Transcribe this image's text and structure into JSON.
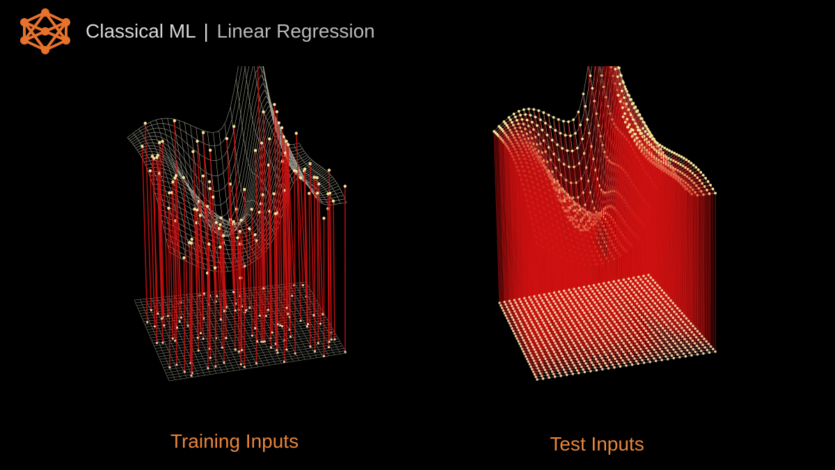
{
  "header": {
    "title_main": "Classical ML",
    "separator": "|",
    "title_sub": "Linear Regression",
    "logo_icon": "neural-network-icon"
  },
  "panels": {
    "training": {
      "caption": "Training Inputs"
    },
    "test": {
      "caption": "Test Inputs"
    }
  },
  "colors": {
    "accent": "#e8722c",
    "caption": "#e8853a",
    "grid": "#c9c9b5",
    "point": "#f3e79a",
    "residual": "#d11111"
  }
}
